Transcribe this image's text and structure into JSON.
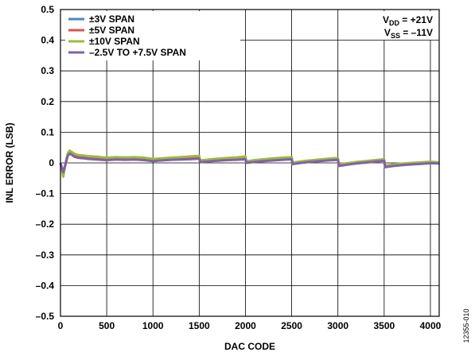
{
  "chart_data": {
    "type": "line",
    "xlabel": "DAC CODE",
    "ylabel": "INL ERROR (LSB)",
    "xlim": [
      0,
      4095
    ],
    "ylim": [
      -0.5,
      0.5
    ],
    "x_ticks": [
      0,
      500,
      1000,
      1500,
      2000,
      2500,
      3000,
      3500,
      4000
    ],
    "x_tick_labels": [
      "0",
      "500",
      "1000",
      "1500",
      "2000",
      "2500",
      "3000",
      "3500",
      "4000"
    ],
    "y_ticks": [
      -0.5,
      -0.4,
      -0.3,
      -0.2,
      -0.1,
      0,
      0.1,
      0.2,
      0.3,
      0.4,
      0.5
    ],
    "y_tick_labels": [
      "–0.5",
      "–0.4",
      "–0.3",
      "–0.2",
      "–0.1",
      "0",
      "0.1",
      "0.2",
      "0.3",
      "0.4",
      "0.5"
    ],
    "grid": true,
    "legend_position": "top-left",
    "annotation": {
      "vdd": {
        "main": "V",
        "sub": "DD",
        "rest": " = +21V"
      },
      "vss": {
        "main": "V",
        "sub": "SS",
        "rest": " = –11V"
      }
    },
    "figure_id": "12355-010",
    "series": [
      {
        "name": "±3V SPAN",
        "color": "#4a86c5",
        "x": [
          0,
          30,
          60,
          80,
          100,
          120,
          150,
          200,
          250,
          300,
          400,
          500,
          600,
          700,
          800,
          900,
          1000,
          1100,
          1200,
          1300,
          1400,
          1500,
          1510,
          1600,
          1700,
          1800,
          1900,
          2000,
          2010,
          2100,
          2200,
          2300,
          2400,
          2500,
          2510,
          2600,
          2700,
          2800,
          2900,
          3000,
          3010,
          3100,
          3200,
          3300,
          3400,
          3500,
          3510,
          3600,
          3700,
          3800,
          3900,
          4000,
          4095
        ],
        "y": [
          0,
          -0.035,
          0.005,
          0.025,
          0.03,
          0.028,
          0.022,
          0.018,
          0.017,
          0.015,
          0.013,
          0.011,
          0.013,
          0.012,
          0.013,
          0.011,
          0.008,
          0.01,
          0.012,
          0.013,
          0.014,
          0.016,
          0.004,
          0.007,
          0.009,
          0.011,
          0.012,
          0.014,
          0.002,
          0.005,
          0.008,
          0.01,
          0.012,
          0.014,
          -0.002,
          0.002,
          0.005,
          0.008,
          0.01,
          0.012,
          -0.008,
          -0.004,
          0,
          0.003,
          0.006,
          0.009,
          -0.012,
          -0.008,
          -0.005,
          -0.003,
          -0.001,
          0.001,
          0
        ]
      },
      {
        "name": "±5V SPAN",
        "color": "#d9534f",
        "x": [
          0,
          30,
          60,
          80,
          100,
          120,
          150,
          200,
          250,
          300,
          400,
          500,
          600,
          700,
          800,
          900,
          1000,
          1100,
          1200,
          1300,
          1400,
          1500,
          1510,
          1600,
          1700,
          1800,
          1900,
          2000,
          2010,
          2100,
          2200,
          2300,
          2400,
          2500,
          2510,
          2600,
          2700,
          2800,
          2900,
          3000,
          3010,
          3100,
          3200,
          3300,
          3400,
          3500,
          3510,
          3600,
          3700,
          3800,
          3900,
          4000,
          4095
        ],
        "y": [
          0,
          -0.038,
          0.004,
          0.026,
          0.032,
          0.029,
          0.023,
          0.019,
          0.017,
          0.016,
          0.014,
          0.012,
          0.014,
          0.013,
          0.014,
          0.012,
          0.009,
          0.011,
          0.013,
          0.014,
          0.015,
          0.017,
          0.005,
          0.008,
          0.01,
          0.012,
          0.013,
          0.015,
          0.003,
          0.006,
          0.009,
          0.011,
          0.013,
          0.015,
          -0.001,
          0.003,
          0.006,
          0.009,
          0.011,
          0.013,
          -0.007,
          -0.003,
          0.001,
          0.004,
          0.007,
          0.01,
          -0.011,
          -0.007,
          -0.004,
          -0.002,
          0,
          0.002,
          0
        ]
      },
      {
        "name": "±10V SPAN",
        "color": "#9bbb3c",
        "x": [
          0,
          30,
          60,
          80,
          100,
          120,
          150,
          200,
          250,
          300,
          400,
          500,
          600,
          700,
          800,
          900,
          1000,
          1100,
          1200,
          1300,
          1400,
          1500,
          1510,
          1600,
          1700,
          1800,
          1900,
          2000,
          2010,
          2100,
          2200,
          2300,
          2400,
          2500,
          2510,
          2600,
          2700,
          2800,
          2900,
          3000,
          3010,
          3100,
          3200,
          3300,
          3400,
          3500,
          3510,
          3600,
          3700,
          3800,
          3900,
          4000,
          4095
        ],
        "y": [
          0,
          -0.045,
          0.008,
          0.032,
          0.04,
          0.036,
          0.03,
          0.025,
          0.024,
          0.022,
          0.02,
          0.017,
          0.019,
          0.018,
          0.019,
          0.017,
          0.013,
          0.015,
          0.017,
          0.019,
          0.021,
          0.023,
          0.008,
          0.011,
          0.014,
          0.016,
          0.018,
          0.021,
          0.005,
          0.009,
          0.012,
          0.015,
          0.017,
          0.019,
          0.001,
          0.005,
          0.008,
          0.011,
          0.014,
          0.016,
          -0.005,
          -0.001,
          0.003,
          0.006,
          0.009,
          0.012,
          -0.009,
          -0.005,
          -0.002,
          0,
          0.002,
          0.004,
          0.002
        ]
      },
      {
        "name": "–2.5V TO +7.5V SPAN",
        "color": "#8062a8",
        "x": [
          0,
          30,
          60,
          80,
          100,
          120,
          150,
          200,
          250,
          300,
          400,
          500,
          600,
          700,
          800,
          900,
          1000,
          1100,
          1200,
          1300,
          1400,
          1500,
          1510,
          1600,
          1700,
          1800,
          1900,
          2000,
          2010,
          2100,
          2200,
          2300,
          2400,
          2500,
          2510,
          2600,
          2700,
          2800,
          2900,
          3000,
          3010,
          3100,
          3200,
          3300,
          3400,
          3500,
          3510,
          3600,
          3700,
          3800,
          3900,
          4000,
          4095
        ],
        "y": [
          0,
          -0.03,
          0.002,
          0.024,
          0.03,
          0.027,
          0.02,
          0.016,
          0.015,
          0.013,
          0.011,
          0.009,
          0.011,
          0.01,
          0.011,
          0.009,
          0.006,
          0.008,
          0.01,
          0.011,
          0.012,
          0.014,
          0.002,
          0.005,
          0.007,
          0.009,
          0.01,
          0.012,
          0,
          0.003,
          0.006,
          0.008,
          0.01,
          0.012,
          -0.004,
          0,
          0.003,
          0.006,
          0.008,
          0.01,
          -0.01,
          -0.006,
          -0.002,
          0.001,
          0.004,
          0.007,
          -0.014,
          -0.01,
          -0.007,
          -0.005,
          -0.003,
          -0.001,
          -0.002
        ]
      }
    ]
  }
}
